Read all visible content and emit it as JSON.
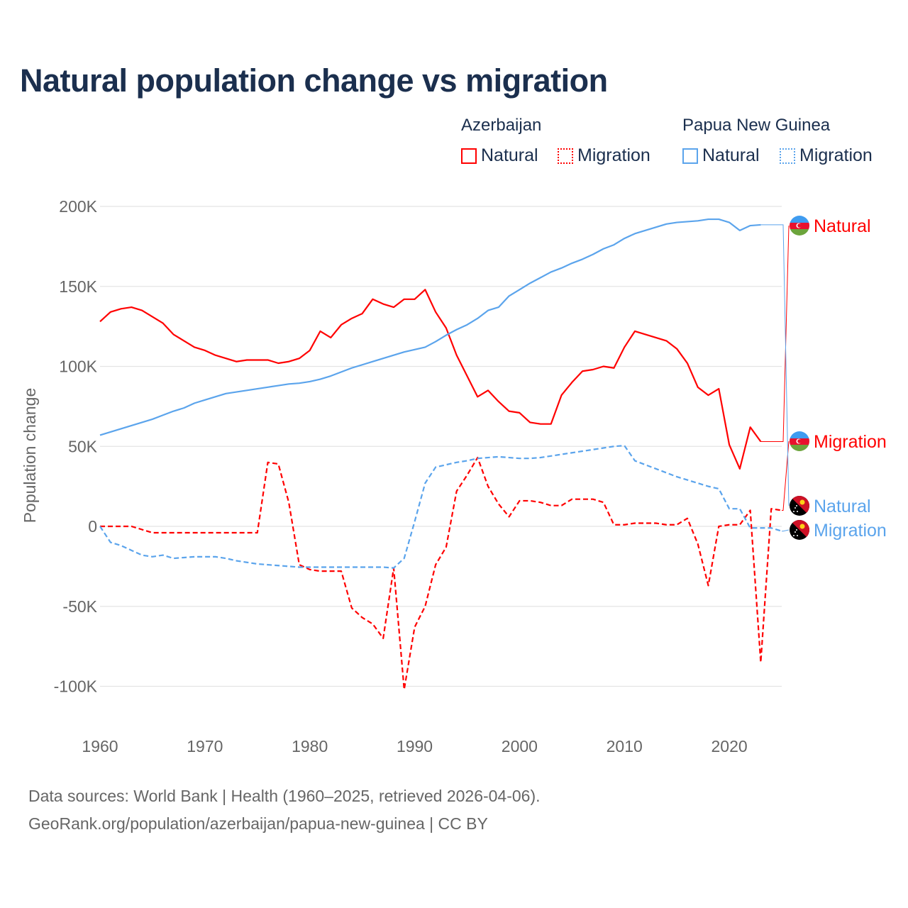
{
  "title": "Natural population change vs migration",
  "legend": {
    "groups": [
      {
        "name": "Azerbaijan",
        "natural": "Natural",
        "migration": "Migration",
        "color": "#ff0000"
      },
      {
        "name": "Papua New Guinea",
        "natural": "Natural",
        "migration": "Migration",
        "color": "#5ba4ec"
      }
    ]
  },
  "footer": {
    "line1": "Data sources: World Bank | Health (1960–2025, retrieved 2026-04-06).",
    "line2": "GeoRank.org/population/azerbaijan/papua-new-guinea | CC BY"
  },
  "chart_data": {
    "type": "line",
    "title": "Natural population change vs migration",
    "xlabel": "",
    "ylabel": "Population change",
    "xlim": [
      1960,
      2025
    ],
    "ylim": [
      -100000,
      200000
    ],
    "xticks": [
      "1960",
      "1970",
      "1980",
      "1990",
      "2000",
      "2010",
      "2020"
    ],
    "yticks": [
      "200K",
      "150K",
      "100K",
      "50K",
      "0",
      "-50K",
      "-100K"
    ],
    "ytick_values": [
      200000,
      150000,
      100000,
      50000,
      0,
      -50000,
      -100000
    ],
    "grid": true,
    "start_year": 1960,
    "series": [
      {
        "name": "Azerbaijan Natural",
        "label": "Natural",
        "country": "Azerbaijan",
        "color": "#ff0000",
        "dash": false,
        "values": [
          128,
          134,
          136,
          137,
          135,
          131,
          127,
          120,
          116,
          112,
          110,
          107,
          105,
          103,
          104,
          104,
          104,
          102,
          103,
          105,
          110,
          122,
          118,
          126,
          130,
          133,
          142,
          139,
          137,
          142,
          142,
          148,
          134,
          124,
          107,
          94,
          81,
          85,
          78,
          72,
          71,
          65,
          64,
          64,
          82,
          90,
          97,
          98,
          100,
          99,
          112,
          122,
          120,
          118,
          116,
          111,
          102,
          87,
          82,
          86,
          51,
          36,
          62,
          53
        ]
      },
      {
        "name": "Azerbaijan Migration",
        "label": "Migration",
        "country": "Azerbaijan",
        "color": "#ff0000",
        "dash": true,
        "values": [
          0,
          0,
          0,
          0,
          -2,
          -4,
          -4,
          -4,
          -4,
          -4,
          -4,
          -4,
          -4,
          -4,
          -4,
          -4,
          40,
          39,
          15,
          -24,
          -27,
          -28,
          -28,
          -28,
          -51,
          -57,
          -61,
          -70,
          -26,
          -102,
          -63,
          -50,
          -24,
          -13,
          22,
          32,
          43,
          25,
          14,
          6,
          16,
          16,
          15,
          13,
          13,
          17,
          17,
          17,
          15,
          1,
          1,
          2,
          2,
          2,
          1,
          1,
          5,
          -11,
          -37,
          0,
          1,
          1,
          10,
          -85,
          11,
          10
        ]
      },
      {
        "name": "Papua New Guinea Natural",
        "label": "Natural",
        "country": "Papua New Guinea",
        "color": "#5ba4ec",
        "dash": false,
        "values": [
          57,
          59,
          61,
          63,
          65,
          67,
          69.5,
          72,
          74,
          77,
          79,
          81,
          83,
          84,
          85,
          86,
          87,
          88,
          89,
          89.5,
          90.5,
          92,
          94,
          96.5,
          99,
          101,
          103,
          105,
          107,
          109,
          110.5,
          112,
          115.5,
          119.5,
          123,
          126,
          130,
          135,
          137,
          144,
          148,
          152,
          155.5,
          159,
          161.5,
          164.5,
          167,
          170,
          173.5,
          176,
          180,
          183,
          185,
          187,
          189,
          190,
          190.5,
          191,
          192,
          192,
          190,
          185,
          188,
          188.5
        ]
      },
      {
        "name": "Papua New Guinea Migration",
        "label": "Migration",
        "country": "Papua New Guinea",
        "color": "#5ba4ec",
        "dash": true,
        "values": [
          0,
          -10,
          -12,
          -15,
          -18,
          -19,
          -18,
          -20,
          -19.5,
          -19,
          -19,
          -19,
          -20,
          -21.5,
          -22.5,
          -23.5,
          -24,
          -24.5,
          -25,
          -25.5,
          -25.5,
          -25.5,
          -25.5,
          -25.5,
          -25.5,
          -25.5,
          -25.5,
          -25.5,
          -26,
          -20,
          3,
          27,
          37,
          38.5,
          40,
          41,
          42.5,
          43,
          43.5,
          43,
          42.5,
          42.5,
          43,
          44,
          45,
          46,
          47,
          48,
          49,
          50,
          50.5,
          41,
          38.5,
          36,
          33.5,
          31,
          29,
          27,
          25,
          23.5,
          11,
          11,
          -1,
          -1,
          -1,
          -3
        ]
      }
    ],
    "value_unit": "thousands"
  }
}
